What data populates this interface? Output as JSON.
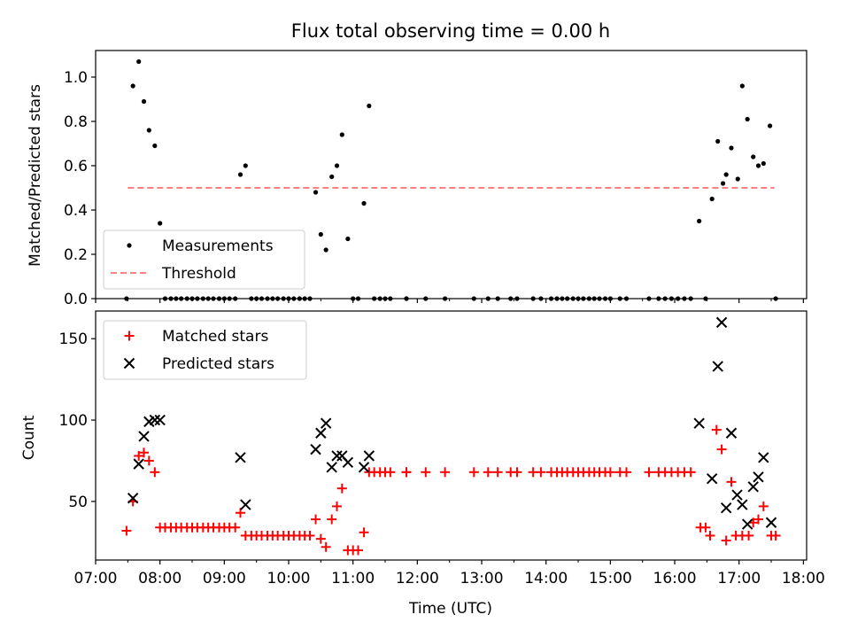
{
  "chart_data": [
    {
      "type": "scatter",
      "title": "Flux total observing time = 0.00 h",
      "ylabel": "Matched/Predicted stars",
      "xlabel": "",
      "xlim": [
        7.0,
        18.05
      ],
      "ylim": [
        0.0,
        1.12
      ],
      "yticks": [
        0.0,
        0.2,
        0.4,
        0.6,
        0.8,
        1.0
      ],
      "ytick_labels": [
        "0.0",
        "0.2",
        "0.4",
        "0.6",
        "0.8",
        "1.0"
      ],
      "legend_position": "lower-left",
      "series": [
        {
          "name": "Measurements",
          "marker": "dot",
          "color": "#000000",
          "points": [
            [
              7.48,
              0.0
            ],
            [
              7.58,
              0.96
            ],
            [
              7.67,
              1.07
            ],
            [
              7.75,
              0.89
            ],
            [
              7.83,
              0.76
            ],
            [
              7.92,
              0.69
            ],
            [
              8.0,
              0.34
            ],
            [
              8.08,
              0.0
            ],
            [
              8.17,
              0.0
            ],
            [
              8.25,
              0.0
            ],
            [
              8.33,
              0.0
            ],
            [
              8.42,
              0.0
            ],
            [
              8.5,
              0.0
            ],
            [
              8.58,
              0.0
            ],
            [
              8.67,
              0.0
            ],
            [
              8.75,
              0.0
            ],
            [
              8.83,
              0.0
            ],
            [
              8.92,
              0.0
            ],
            [
              9.0,
              0.0
            ],
            [
              9.08,
              0.0
            ],
            [
              9.17,
              0.0
            ],
            [
              9.25,
              0.56
            ],
            [
              9.33,
              0.6
            ],
            [
              9.42,
              0.0
            ],
            [
              9.5,
              0.0
            ],
            [
              9.58,
              0.0
            ],
            [
              9.67,
              0.0
            ],
            [
              9.75,
              0.0
            ],
            [
              9.83,
              0.0
            ],
            [
              9.92,
              0.0
            ],
            [
              10.0,
              0.0
            ],
            [
              10.08,
              0.0
            ],
            [
              10.17,
              0.0
            ],
            [
              10.25,
              0.0
            ],
            [
              10.33,
              0.0
            ],
            [
              10.42,
              0.48
            ],
            [
              10.5,
              0.29
            ],
            [
              10.58,
              0.22
            ],
            [
              10.67,
              0.55
            ],
            [
              10.75,
              0.6
            ],
            [
              10.83,
              0.74
            ],
            [
              10.92,
              0.27
            ],
            [
              11.0,
              0.0
            ],
            [
              11.08,
              0.0
            ],
            [
              11.17,
              0.43
            ],
            [
              11.25,
              0.87
            ],
            [
              11.33,
              0.0
            ],
            [
              11.42,
              0.0
            ],
            [
              11.5,
              0.0
            ],
            [
              11.58,
              0.0
            ],
            [
              11.83,
              0.0
            ],
            [
              11.83,
              0.0
            ],
            [
              12.13,
              0.0
            ],
            [
              12.43,
              0.0
            ],
            [
              12.88,
              0.0
            ],
            [
              13.1,
              0.0
            ],
            [
              13.25,
              0.0
            ],
            [
              13.45,
              0.0
            ],
            [
              13.55,
              0.0
            ],
            [
              13.8,
              0.0
            ],
            [
              13.92,
              0.0
            ],
            [
              14.08,
              0.0
            ],
            [
              14.17,
              0.0
            ],
            [
              14.25,
              0.0
            ],
            [
              14.33,
              0.0
            ],
            [
              14.42,
              0.0
            ],
            [
              14.5,
              0.0
            ],
            [
              14.58,
              0.0
            ],
            [
              14.67,
              0.0
            ],
            [
              14.75,
              0.0
            ],
            [
              14.83,
              0.0
            ],
            [
              14.92,
              0.0
            ],
            [
              15.0,
              0.0
            ],
            [
              15.15,
              0.0
            ],
            [
              15.25,
              0.0
            ],
            [
              15.6,
              0.0
            ],
            [
              15.75,
              0.0
            ],
            [
              15.85,
              0.0
            ],
            [
              15.95,
              0.0
            ],
            [
              16.05,
              0.0
            ],
            [
              16.15,
              0.0
            ],
            [
              16.25,
              0.0
            ],
            [
              16.38,
              0.35
            ],
            [
              16.48,
              0.0
            ],
            [
              16.58,
              0.45
            ],
            [
              16.67,
              0.71
            ],
            [
              16.75,
              0.52
            ],
            [
              16.8,
              0.56
            ],
            [
              16.88,
              0.68
            ],
            [
              16.98,
              0.54
            ],
            [
              17.05,
              0.96
            ],
            [
              17.13,
              0.81
            ],
            [
              17.22,
              0.64
            ],
            [
              17.3,
              0.6
            ],
            [
              17.38,
              0.61
            ],
            [
              17.48,
              0.78
            ],
            [
              17.57,
              0.0
            ]
          ]
        },
        {
          "name": "Threshold",
          "marker": "dashed-line",
          "color": "#ff8080",
          "points": [
            [
              7.5,
              0.5
            ],
            [
              17.55,
              0.5
            ]
          ]
        }
      ]
    },
    {
      "type": "scatter",
      "title": "",
      "ylabel": "Count",
      "xlabel": "Time (UTC)",
      "xlim": [
        7.0,
        18.05
      ],
      "ylim": [
        14,
        167
      ],
      "xticks": [
        7,
        8,
        9,
        10,
        11,
        12,
        13,
        14,
        15,
        16,
        17,
        18
      ],
      "xtick_labels": [
        "07:00",
        "08:00",
        "09:00",
        "10:00",
        "11:00",
        "12:00",
        "13:00",
        "14:00",
        "15:00",
        "16:00",
        "17:00",
        "18:00"
      ],
      "yticks": [
        50,
        100,
        150
      ],
      "ytick_labels": [
        "50",
        "100",
        "150"
      ],
      "legend_position": "upper-left",
      "series": [
        {
          "name": "Matched stars",
          "marker": "plus",
          "color": "#ff0000",
          "points": [
            [
              7.48,
              32
            ],
            [
              7.58,
              50
            ],
            [
              7.67,
              78
            ],
            [
              7.75,
              80
            ],
            [
              7.83,
              75
            ],
            [
              7.92,
              68
            ],
            [
              8.0,
              34
            ],
            [
              8.08,
              34
            ],
            [
              8.17,
              34
            ],
            [
              8.25,
              34
            ],
            [
              8.33,
              34
            ],
            [
              8.42,
              34
            ],
            [
              8.5,
              34
            ],
            [
              8.58,
              34
            ],
            [
              8.67,
              34
            ],
            [
              8.75,
              34
            ],
            [
              8.83,
              34
            ],
            [
              8.92,
              34
            ],
            [
              9.0,
              34
            ],
            [
              9.08,
              34
            ],
            [
              9.17,
              34
            ],
            [
              9.25,
              43
            ],
            [
              9.33,
              29
            ],
            [
              9.42,
              29
            ],
            [
              9.5,
              29
            ],
            [
              9.58,
              29
            ],
            [
              9.67,
              29
            ],
            [
              9.75,
              29
            ],
            [
              9.83,
              29
            ],
            [
              9.92,
              29
            ],
            [
              10.0,
              29
            ],
            [
              10.08,
              29
            ],
            [
              10.17,
              29
            ],
            [
              10.25,
              29
            ],
            [
              10.33,
              29
            ],
            [
              10.42,
              39
            ],
            [
              10.5,
              27
            ],
            [
              10.58,
              22
            ],
            [
              10.67,
              39
            ],
            [
              10.75,
              47
            ],
            [
              10.83,
              58
            ],
            [
              10.92,
              20
            ],
            [
              11.0,
              20
            ],
            [
              11.08,
              20
            ],
            [
              11.17,
              31
            ],
            [
              11.25,
              68
            ],
            [
              11.33,
              68
            ],
            [
              11.42,
              68
            ],
            [
              11.5,
              68
            ],
            [
              11.58,
              68
            ],
            [
              11.83,
              68
            ],
            [
              11.83,
              68
            ],
            [
              12.13,
              68
            ],
            [
              12.43,
              68
            ],
            [
              12.88,
              68
            ],
            [
              13.1,
              68
            ],
            [
              13.25,
              68
            ],
            [
              13.45,
              68
            ],
            [
              13.55,
              68
            ],
            [
              13.8,
              68
            ],
            [
              13.92,
              68
            ],
            [
              14.08,
              68
            ],
            [
              14.17,
              68
            ],
            [
              14.25,
              68
            ],
            [
              14.33,
              68
            ],
            [
              14.42,
              68
            ],
            [
              14.5,
              68
            ],
            [
              14.58,
              68
            ],
            [
              14.67,
              68
            ],
            [
              14.75,
              68
            ],
            [
              14.83,
              68
            ],
            [
              14.92,
              68
            ],
            [
              15.0,
              68
            ],
            [
              15.15,
              68
            ],
            [
              15.25,
              68
            ],
            [
              15.6,
              68
            ],
            [
              15.75,
              68
            ],
            [
              15.85,
              68
            ],
            [
              15.95,
              68
            ],
            [
              16.05,
              68
            ],
            [
              16.15,
              68
            ],
            [
              16.25,
              68
            ],
            [
              16.4,
              34
            ],
            [
              16.48,
              34
            ],
            [
              16.55,
              29
            ],
            [
              16.65,
              94
            ],
            [
              16.73,
              82
            ],
            [
              16.8,
              26
            ],
            [
              16.88,
              62
            ],
            [
              16.95,
              29
            ],
            [
              17.05,
              29
            ],
            [
              17.15,
              29
            ],
            [
              17.22,
              37
            ],
            [
              17.3,
              39
            ],
            [
              17.38,
              47
            ],
            [
              17.5,
              29
            ],
            [
              17.57,
              29
            ]
          ]
        },
        {
          "name": "Predicted stars",
          "marker": "x",
          "color": "#000000",
          "points": [
            [
              7.58,
              52
            ],
            [
              7.67,
              73
            ],
            [
              7.75,
              90
            ],
            [
              7.83,
              99
            ],
            [
              7.92,
              100
            ],
            [
              8.0,
              100
            ],
            [
              9.25,
              77
            ],
            [
              9.33,
              48
            ],
            [
              10.42,
              82
            ],
            [
              10.5,
              92
            ],
            [
              10.58,
              98
            ],
            [
              10.67,
              71
            ],
            [
              10.75,
              78
            ],
            [
              10.83,
              78
            ],
            [
              10.92,
              74
            ],
            [
              11.17,
              71
            ],
            [
              11.25,
              78
            ],
            [
              16.38,
              98
            ],
            [
              16.58,
              64
            ],
            [
              16.67,
              133
            ],
            [
              16.73,
              160
            ],
            [
              16.8,
              46
            ],
            [
              16.88,
              92
            ],
            [
              16.97,
              54
            ],
            [
              17.05,
              48
            ],
            [
              17.13,
              36
            ],
            [
              17.22,
              59
            ],
            [
              17.3,
              65
            ],
            [
              17.38,
              77
            ],
            [
              17.5,
              37
            ]
          ]
        }
      ]
    }
  ]
}
